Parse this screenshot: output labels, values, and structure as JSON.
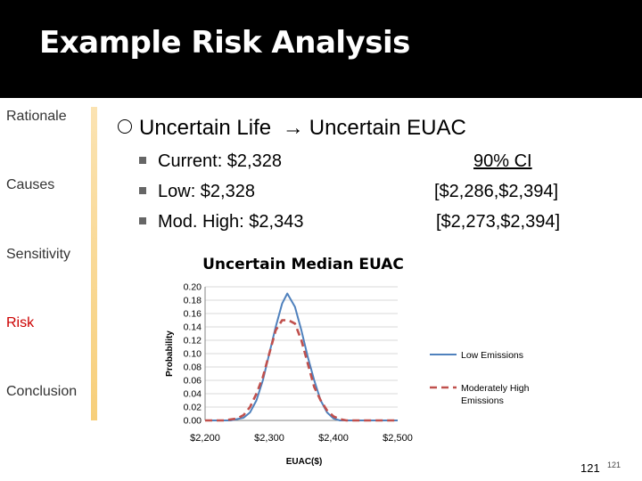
{
  "slide": {
    "title": "Example Risk Analysis",
    "page_number": "121",
    "page_number_small": "121"
  },
  "nav": [
    {
      "label": "Rationale",
      "active": false
    },
    {
      "label": "Causes",
      "active": false
    },
    {
      "label": "Sensitivity",
      "active": false
    },
    {
      "label": "Risk",
      "active": true
    },
    {
      "label": "Conclusion",
      "active": false
    }
  ],
  "content": {
    "main_bullet": {
      "left": "Uncertain Life",
      "arrow": "→",
      "right": "Uncertain EUAC"
    },
    "ci_header": "90% CI",
    "rows": [
      {
        "label": "Current: $2,328",
        "ci": ""
      },
      {
        "label": "Low: $2,328",
        "ci": "[$2,286,$2,394]"
      },
      {
        "label": "Mod. High: $2,343",
        "ci": "[$2,273,$2,394]"
      }
    ]
  },
  "chart_data": {
    "type": "line",
    "title": "Uncertain Median EUAC",
    "xlabel": "EUAC($)",
    "ylabel": "Probability",
    "xlim": [
      2200,
      2500
    ],
    "ylim": [
      0,
      0.2
    ],
    "xticks": [
      "$2,200",
      "$2,300",
      "$2,400",
      "$2,500"
    ],
    "yticks": [
      "0.20",
      "0.18",
      "0.16",
      "0.14",
      "0.12",
      "0.10",
      "0.08",
      "0.06",
      "0.04",
      "0.02",
      "0.00"
    ],
    "grid": true,
    "legend": "right",
    "series": [
      {
        "name": "Low Emissions",
        "color": "#4f81bd",
        "style": "solid",
        "x": [
          2200,
          2220,
          2240,
          2260,
          2270,
          2280,
          2290,
          2300,
          2310,
          2320,
          2328,
          2340,
          2350,
          2360,
          2370,
          2380,
          2390,
          2400,
          2410,
          2420,
          2440,
          2460,
          2480,
          2500
        ],
        "y": [
          0.0,
          0.0,
          0.0,
          0.004,
          0.012,
          0.03,
          0.06,
          0.1,
          0.14,
          0.175,
          0.19,
          0.17,
          0.135,
          0.095,
          0.06,
          0.03,
          0.012,
          0.003,
          0.0,
          0.0,
          0.0,
          0.0,
          0.0,
          0.0
        ]
      },
      {
        "name": "Moderately High Emissions",
        "color": "#c0504d",
        "style": "dashed",
        "x": [
          2200,
          2230,
          2250,
          2260,
          2270,
          2280,
          2290,
          2300,
          2310,
          2320,
          2330,
          2340,
          2350,
          2360,
          2370,
          2380,
          2390,
          2400,
          2410,
          2420,
          2440,
          2460,
          2480,
          2500
        ],
        "y": [
          0.0,
          0.0,
          0.003,
          0.008,
          0.02,
          0.04,
          0.065,
          0.1,
          0.135,
          0.15,
          0.15,
          0.145,
          0.12,
          0.085,
          0.05,
          0.03,
          0.015,
          0.006,
          0.002,
          0.0,
          0.0,
          0.0,
          0.0,
          0.0
        ]
      }
    ]
  }
}
